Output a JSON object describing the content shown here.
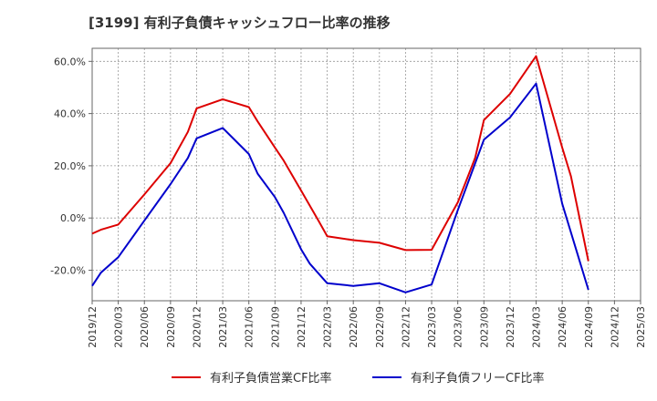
{
  "chart_data": {
    "type": "line",
    "title": "[3199]  有利子負債キャッシュフロー比率の推移",
    "xlabel": "",
    "ylabel": "",
    "ylim": [
      -31.7,
      65
    ],
    "yticks": [
      "-20.0%",
      "0.0%",
      "20.0%",
      "40.0%",
      "60.0%"
    ],
    "ytick_values": [
      -20,
      0,
      20,
      40,
      60
    ],
    "x_ticks": [
      "2019/12",
      "2020/03",
      "2020/06",
      "2020/09",
      "2020/12",
      "2021/03",
      "2021/06",
      "2021/09",
      "2021/12",
      "2022/03",
      "2022/06",
      "2022/09",
      "2022/12",
      "2023/03",
      "2023/06",
      "2023/09",
      "2023/12",
      "2024/03",
      "2024/06",
      "2024/09",
      "2024/12",
      "2025/03"
    ],
    "grid": true,
    "legend_position": "bottom",
    "series": [
      {
        "name": "有利子負債営業CF比率",
        "color": "#dd0000",
        "x": [
          "2019/12",
          "2020/01",
          "2020/03",
          "2020/06",
          "2020/09",
          "2020/11",
          "2020/12",
          "2021/03",
          "2021/06",
          "2021/07",
          "2021/09",
          "2021/10",
          "2021/12",
          "2022/02",
          "2022/03",
          "2022/06",
          "2022/09",
          "2022/12",
          "2023/03",
          "2023/06",
          "2023/08",
          "2023/09",
          "2023/12",
          "2024/03",
          "2024/06",
          "2024/07",
          "2024/09"
        ],
        "values": [
          -6,
          -4.5,
          -2.5,
          9,
          21,
          33,
          42,
          45.5,
          42.5,
          37,
          27,
          22,
          10.5,
          -1,
          -7,
          -8.5,
          -9.5,
          -12.3,
          -12.2,
          6,
          23,
          37.5,
          47.5,
          62,
          27,
          16,
          -16.5
        ]
      },
      {
        "name": "有利子負債フリーCF比率",
        "color": "#0000cc",
        "x": [
          "2019/12",
          "2020/01",
          "2020/03",
          "2020/06",
          "2020/09",
          "2020/11",
          "2020/12",
          "2021/03",
          "2021/06",
          "2021/07",
          "2021/09",
          "2021/10",
          "2021/12",
          "2022/01",
          "2022/03",
          "2022/06",
          "2022/09",
          "2022/12",
          "2023/03",
          "2023/06",
          "2023/09",
          "2023/12",
          "2024/03",
          "2024/06",
          "2024/09"
        ],
        "values": [
          -26,
          -21,
          -15,
          -1,
          13,
          23,
          30.5,
          34.5,
          24.5,
          17,
          8,
          2,
          -12,
          -17.5,
          -25,
          -26,
          -25,
          -28.5,
          -25.5,
          3,
          30,
          38.5,
          51.5,
          5.5,
          -27.5
        ]
      }
    ]
  }
}
